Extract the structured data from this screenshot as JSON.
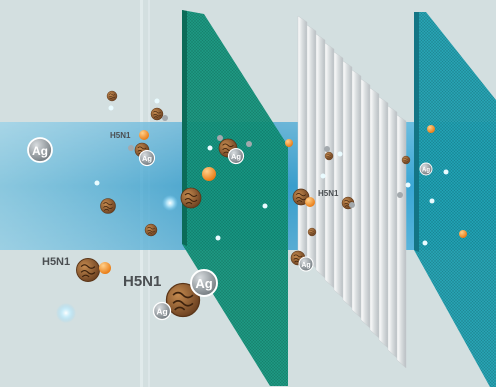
{
  "labels": {
    "virus": "H5N1",
    "silver": "Ag"
  },
  "colors": {
    "background": "#d3dfe0",
    "airflow": "#2aa3d6",
    "filter_green": "#13937c",
    "filter_teal": "#1e9fb0",
    "pleated_filter": "#eeeeee",
    "virus": "#8a5a2b",
    "silver_ion": "#8e9599",
    "particle_orange": "#f08a1c"
  },
  "icons": [
    "virus-icon",
    "silver-ion-icon"
  ]
}
